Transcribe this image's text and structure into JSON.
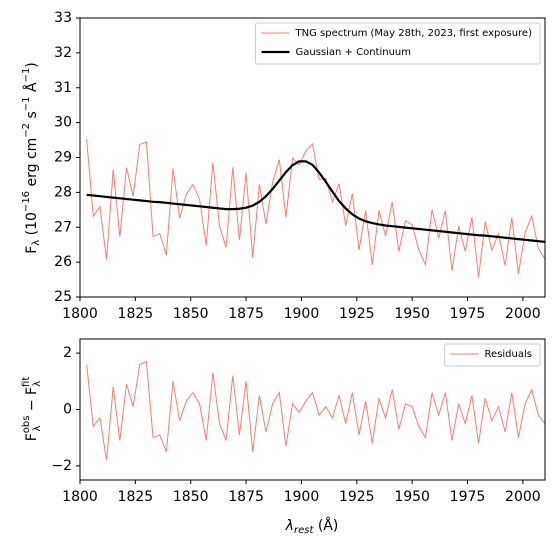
{
  "chart_data": [
    {
      "type": "line",
      "x": [
        1803,
        1806,
        1809,
        1812,
        1815,
        1818,
        1821,
        1824,
        1827,
        1830,
        1833,
        1836,
        1839,
        1842,
        1845,
        1848,
        1851,
        1854,
        1857,
        1860,
        1863,
        1866,
        1869,
        1872,
        1875,
        1878,
        1881,
        1884,
        1887,
        1890,
        1893,
        1896,
        1899,
        1902,
        1905,
        1908,
        1911,
        1914,
        1917,
        1920,
        1923,
        1926,
        1929,
        1932,
        1935,
        1938,
        1941,
        1944,
        1947,
        1950,
        1953,
        1956,
        1959,
        1962,
        1965,
        1968,
        1971,
        1974,
        1977,
        1980,
        1983,
        1986,
        1989,
        1992,
        1995,
        1998,
        2001,
        2004,
        2007,
        2010
      ],
      "series": [
        {
          "name": "TNG spectrum (May 28th, 2023, first exposure)",
          "color": "#f08070",
          "width": 1,
          "values": [
            29.53,
            27.31,
            27.59,
            26.07,
            28.65,
            26.73,
            28.71,
            27.89,
            29.37,
            29.45,
            26.73,
            26.82,
            26.2,
            28.68,
            27.26,
            27.94,
            28.22,
            27.8,
            26.48,
            28.86,
            27.04,
            26.42,
            28.72,
            26.63,
            28.56,
            26.12,
            28.23,
            27.09,
            28.3,
            28.94,
            27.28,
            28.98,
            28.79,
            29.19,
            29.39,
            28.37,
            28.4,
            27.72,
            28.25,
            27.04,
            27.97,
            26.35,
            27.47,
            25.92,
            27.48,
            26.75,
            27.73,
            26.31,
            27.19,
            27.07,
            26.35,
            25.93,
            27.51,
            26.69,
            27.47,
            25.75,
            27.03,
            26.31,
            27.29,
            25.57,
            27.16,
            26.34,
            26.82,
            25.9,
            27.28,
            25.66,
            26.84,
            27.32,
            26.4,
            26.08
          ]
        },
        {
          "name": "Gaussian + Continuum",
          "color": "#000000",
          "width": 2.2,
          "values": [
            27.93,
            27.91,
            27.89,
            27.87,
            27.85,
            27.83,
            27.81,
            27.79,
            27.77,
            27.75,
            27.73,
            27.72,
            27.7,
            27.68,
            27.66,
            27.64,
            27.62,
            27.6,
            27.58,
            27.56,
            27.54,
            27.52,
            27.52,
            27.53,
            27.56,
            27.62,
            27.73,
            27.89,
            28.1,
            28.34,
            28.58,
            28.78,
            28.89,
            28.89,
            28.79,
            28.57,
            28.3,
            28.02,
            27.75,
            27.54,
            27.37,
            27.25,
            27.17,
            27.12,
            27.08,
            27.05,
            27.03,
            27.01,
            26.99,
            26.97,
            26.95,
            26.93,
            26.91,
            26.89,
            26.87,
            26.85,
            26.83,
            26.81,
            26.79,
            26.77,
            26.76,
            26.74,
            26.72,
            26.7,
            26.68,
            26.66,
            26.64,
            26.62,
            26.6,
            26.58
          ]
        }
      ],
      "xlim": [
        1800,
        2010
      ],
      "xticks": [
        1800,
        1825,
        1850,
        1875,
        1900,
        1925,
        1950,
        1975,
        2000
      ],
      "ylim": [
        25,
        33
      ],
      "yticks": [
        25,
        26,
        27,
        28,
        29,
        30,
        31,
        32,
        33
      ],
      "ylabel": [
        "F",
        "λ",
        " (10",
        "−16",
        " erg cm",
        "−2",
        " s",
        "−1",
        " Å",
        "−1",
        ")"
      ],
      "legend": "upper right"
    },
    {
      "type": "line",
      "x": [
        1803,
        1806,
        1809,
        1812,
        1815,
        1818,
        1821,
        1824,
        1827,
        1830,
        1833,
        1836,
        1839,
        1842,
        1845,
        1848,
        1851,
        1854,
        1857,
        1860,
        1863,
        1866,
        1869,
        1872,
        1875,
        1878,
        1881,
        1884,
        1887,
        1890,
        1893,
        1896,
        1899,
        1902,
        1905,
        1908,
        1911,
        1914,
        1917,
        1920,
        1923,
        1926,
        1929,
        1932,
        1935,
        1938,
        1941,
        1944,
        1947,
        1950,
        1953,
        1956,
        1959,
        1962,
        1965,
        1968,
        1971,
        1974,
        1977,
        1980,
        1983,
        1986,
        1989,
        1992,
        1995,
        1998,
        2001,
        2004,
        2007,
        2010
      ],
      "series": [
        {
          "name": "Residuals",
          "color": "#f08070",
          "width": 1,
          "values": [
            1.6,
            -0.6,
            -0.3,
            -1.8,
            0.8,
            -1.1,
            0.9,
            0.1,
            1.6,
            1.7,
            -1.0,
            -0.9,
            -1.5,
            1.0,
            -0.4,
            0.3,
            0.6,
            0.2,
            -1.1,
            1.3,
            -0.5,
            -1.1,
            1.2,
            -0.9,
            1.0,
            -1.5,
            0.5,
            -0.8,
            0.2,
            0.6,
            -1.3,
            0.2,
            -0.1,
            0.3,
            0.6,
            -0.2,
            0.1,
            -0.3,
            0.5,
            -0.5,
            0.6,
            -0.9,
            0.3,
            -1.2,
            0.4,
            -0.3,
            0.7,
            -0.7,
            0.2,
            0.1,
            -0.6,
            -1.0,
            0.6,
            -0.2,
            0.6,
            -1.1,
            0.2,
            -0.5,
            0.5,
            -1.2,
            0.4,
            -0.4,
            0.1,
            -0.8,
            0.6,
            -1.0,
            0.2,
            0.7,
            -0.2,
            -0.5
          ]
        }
      ],
      "xlim": [
        1800,
        2010
      ],
      "xticks": [
        1800,
        1825,
        1850,
        1875,
        1900,
        1925,
        1950,
        1975,
        2000
      ],
      "ylim": [
        -2.5,
        2.5
      ],
      "yticks": [
        {
          "value": -2,
          "label": "−2"
        },
        0,
        2
      ],
      "ylabel": [
        "F",
        "λ",
        "obs",
        " − F",
        "λ",
        "fit"
      ],
      "xlabel": [
        "λ",
        "rest",
        " (Å)"
      ],
      "legend": "upper right"
    }
  ]
}
